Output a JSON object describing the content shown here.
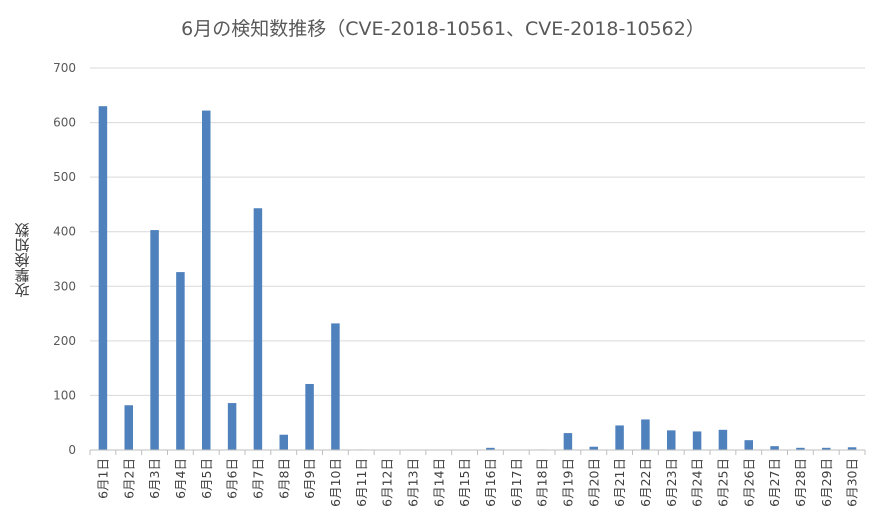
{
  "chart_data": {
    "type": "bar",
    "title": "6月の検知数推移（CVE-2018-10561、CVE-2018-10562）",
    "xlabel": "",
    "ylabel": "攻撃検知数",
    "ylim": [
      0,
      700
    ],
    "yticks": [
      0,
      100,
      200,
      300,
      400,
      500,
      600,
      700
    ],
    "grid": true,
    "legend": "none",
    "bar_color": "#4F81BD",
    "categories": [
      "6月1日",
      "6月2日",
      "6月3日",
      "6月4日",
      "6月5日",
      "6月6日",
      "6月7日",
      "6月8日",
      "6月9日",
      "6月10日",
      "6月11日",
      "6月12日",
      "6月13日",
      "6月14日",
      "6月15日",
      "6月16日",
      "6月17日",
      "6月18日",
      "6月19日",
      "6月20日",
      "6月21日",
      "6月22日",
      "6月23日",
      "6月24日",
      "6月25日",
      "6月26日",
      "6月27日",
      "6月28日",
      "6月29日",
      "6月30日"
    ],
    "values": [
      630,
      82,
      403,
      326,
      622,
      86,
      443,
      28,
      121,
      232,
      1,
      0,
      0,
      0,
      0,
      4,
      0,
      1,
      31,
      6,
      45,
      56,
      36,
      34,
      37,
      18,
      7,
      4,
      4,
      5
    ]
  }
}
